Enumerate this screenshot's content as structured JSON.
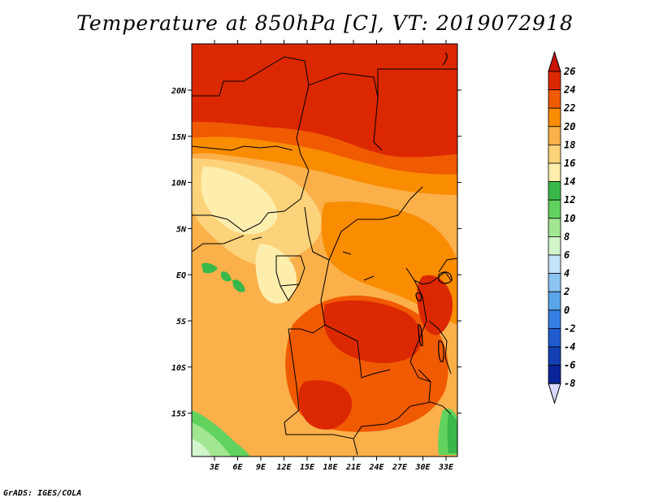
{
  "title": "Temperature at 850hPa [C], VT: 2019072918",
  "credit": "GrADS: IGES/COLA",
  "map": {
    "variable": "Temperature at 850hPa",
    "units": "C",
    "valid_time": "2019072918",
    "lon_ticks": [
      "3E",
      "6E",
      "9E",
      "12E",
      "15E",
      "18E",
      "21E",
      "24E",
      "27E",
      "30E",
      "33E"
    ],
    "lat_ticks": [
      "20N",
      "15N",
      "10N",
      "5N",
      "EQ",
      "5S",
      "10S",
      "15S"
    ]
  },
  "colorbar": {
    "labels": [
      "26",
      "24",
      "22",
      "20",
      "18",
      "16",
      "14",
      "12",
      "10",
      "8",
      "6",
      "4",
      "2",
      "0",
      "-2",
      "-4",
      "-6",
      "-8"
    ],
    "colors": [
      "#dc2800",
      "#f05a00",
      "#fa8c00",
      "#fbb04a",
      "#fcd27a",
      "#fdeeae",
      "#38b84a",
      "#62d25e",
      "#a2e692",
      "#d2f5cc",
      "#c4e4f8",
      "#8cc4f0",
      "#5aa4ea",
      "#3680e4",
      "#205cd0",
      "#1440b4",
      "#0a249a",
      "#000a64"
    ],
    "top_arrow_color": "#c81400",
    "bottom_arrow_color": "#d8d8ff"
  }
}
